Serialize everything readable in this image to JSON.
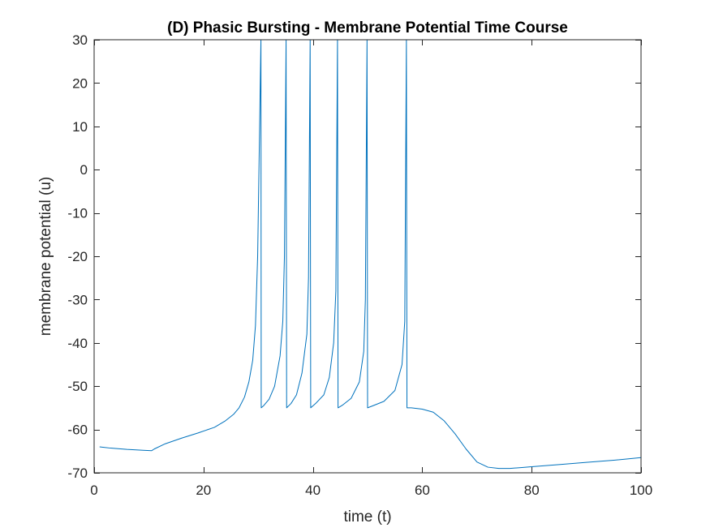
{
  "chart_data": {
    "type": "line",
    "title": "(D) Phasic Bursting - Membrane Potential Time Course",
    "xlabel": "time (t)",
    "ylabel": "membrane potential (u)",
    "xlim": [
      0,
      100
    ],
    "ylim": [
      -70,
      30
    ],
    "xticks": [
      0,
      20,
      40,
      60,
      80,
      100
    ],
    "yticks": [
      30,
      20,
      10,
      0,
      -10,
      -20,
      -30,
      -40,
      -50,
      -60,
      -70
    ],
    "grid": false,
    "legend": "none",
    "line_color": "#0072BD",
    "series": [
      {
        "x": [
          1,
          3,
          6,
          9,
          10.5,
          11,
          13,
          16,
          19,
          22,
          24,
          25.5,
          26.5,
          27.5,
          28.3,
          29,
          29.5,
          29.9,
          30.2,
          30.5,
          30.55,
          31,
          32,
          33,
          34,
          34.5,
          34.8,
          35.1,
          35.2,
          36,
          37,
          38,
          38.9,
          39.2,
          39.5,
          39.6,
          40.5,
          42,
          43,
          43.8,
          44.2,
          44.5,
          44.6,
          45.5,
          47,
          48.5,
          49.3,
          49.6,
          49.9,
          50.0,
          51,
          53,
          55,
          56.3,
          56.8,
          57.1,
          57.2,
          58,
          60,
          62,
          64,
          66,
          68,
          70,
          72,
          74,
          76,
          78,
          80,
          85,
          90,
          95,
          100
        ],
        "y": [
          -64,
          -64.3,
          -64.6,
          -64.8,
          -64.9,
          -64.5,
          -63.3,
          -62,
          -60.8,
          -59.5,
          -58,
          -56.5,
          -55,
          -52.5,
          -49,
          -44,
          -36,
          -20,
          5,
          30,
          -55,
          -54.5,
          -53,
          -50,
          -43,
          -35,
          -20,
          30,
          -55,
          -54,
          -52,
          -47,
          -38,
          -25,
          30,
          -55,
          -54,
          -52,
          -48,
          -40,
          -28,
          30,
          -55,
          -54.3,
          -52.8,
          -49,
          -42,
          -30,
          30,
          -55,
          -54.5,
          -53.5,
          -51,
          -45,
          -35,
          30,
          -55,
          -55,
          -55.3,
          -56,
          -58,
          -61,
          -64.5,
          -67.5,
          -68.7,
          -69,
          -69,
          -68.8,
          -68.6,
          -68.1,
          -67.6,
          -67.1,
          -66.5
        ]
      }
    ]
  }
}
